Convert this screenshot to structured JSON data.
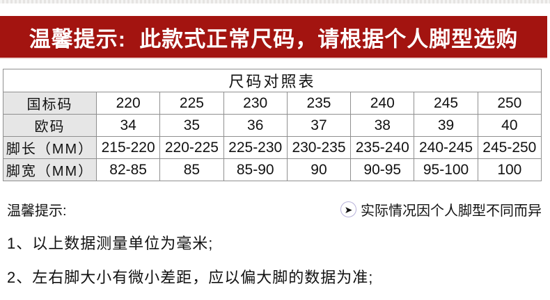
{
  "banner": {
    "text": "温馨提示:  此款式正常尺码，请根据个人脚型选购"
  },
  "size_chart": {
    "title": "尺码对照表",
    "rows": [
      {
        "label": "国标码",
        "values": [
          "220",
          "225",
          "230",
          "235",
          "240",
          "245",
          "250"
        ]
      },
      {
        "label": "欧码",
        "values": [
          "34",
          "35",
          "36",
          "37",
          "38",
          "39",
          "40"
        ]
      },
      {
        "label": "脚长（MM）",
        "values": [
          "215-220",
          "220-225",
          "225-230",
          "230-235",
          "235-240",
          "240-245",
          "245-250"
        ]
      },
      {
        "label": "脚宽（MM）",
        "values": [
          "82-85",
          "85",
          "85-90",
          "90",
          "90-95",
          "95-100",
          "100"
        ]
      }
    ]
  },
  "notes": {
    "heading": "温馨提示:",
    "side_note": {
      "icon": "arrow-right-circle-icon",
      "icon_glyph": "➤",
      "text": "实际情况因个人脚型不同而异"
    },
    "items": [
      "1、以上数据测量单位为毫米;",
      "2、左右脚大小有微小差距，应以偏大脚的数据为准;"
    ]
  },
  "colors": {
    "banner_bg": "#a31410",
    "banner_text": "#ffffff",
    "banner_shadow": "#f0d9d5",
    "top_strip": "#eae9e7",
    "table_border": "#8f8f8f",
    "label_cell_bg": "#e6e6e6",
    "icon_ring": "#b7b1da",
    "text": "#111111"
  }
}
